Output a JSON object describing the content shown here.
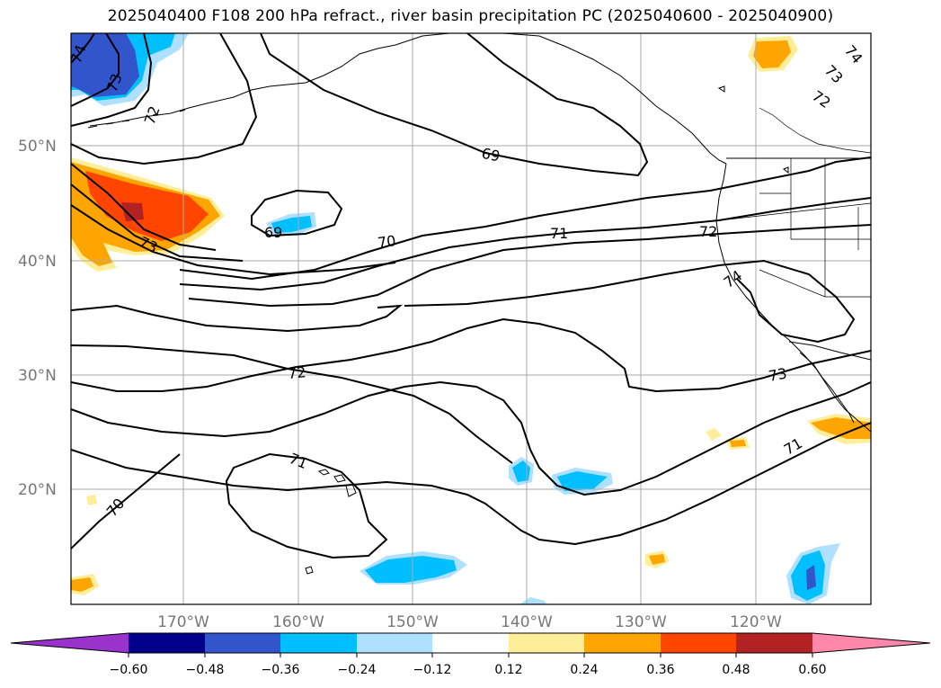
{
  "title": "2025040400 F108 200 hPa refract., river basin precipitation PC (2025040600 - 2025040900)",
  "map": {
    "lat_labels": [
      "50°N",
      "40°N",
      "30°N",
      "20°N"
    ],
    "lon_labels": [
      "170°W",
      "160°W",
      "150°W",
      "140°W",
      "130°W",
      "120°W"
    ],
    "contour_labels": [
      "74",
      "73",
      "72",
      "69",
      "69",
      "70",
      "71",
      "72",
      "73",
      "72",
      "74",
      "73",
      "72",
      "71",
      "70",
      "71",
      "73",
      "74"
    ],
    "shading": {
      "positive_colors": [
        "#ffee99",
        "#ffa500",
        "#ff4500",
        "#b22222",
        "#ff88aa"
      ],
      "negative_colors": [
        "#b0e0ff",
        "#00bfff",
        "#3355cc",
        "#00008b",
        "#9933cc"
      ]
    }
  },
  "colorbar": {
    "ticks": [
      "−0.60",
      "−0.48",
      "−0.36",
      "−0.24",
      "−0.12",
      "0.12",
      "0.24",
      "0.36",
      "0.48",
      "0.60"
    ],
    "colors": [
      "#9933cc",
      "#00008b",
      "#3355cc",
      "#00bfff",
      "#b0e0ff",
      "#ffffff",
      "#ffee99",
      "#ffa500",
      "#ff4500",
      "#b22222",
      "#ff88aa"
    ]
  }
}
